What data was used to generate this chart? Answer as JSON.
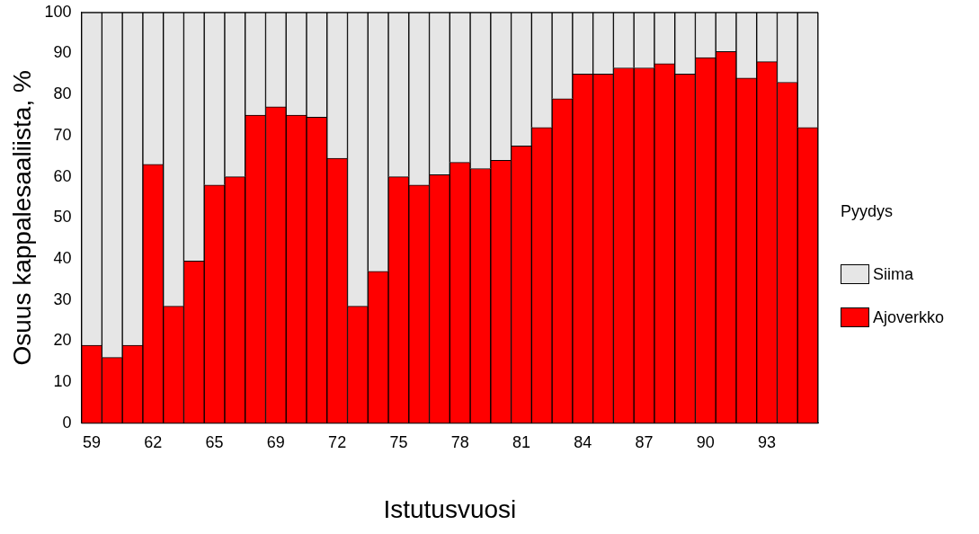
{
  "chart_data": {
    "type": "bar",
    "stacked": true,
    "xlabel": "Istutusvuosi",
    "ylabel": "Osuus kappalesaaliista, %",
    "legend_title": "Pyydys",
    "legend": "right",
    "grid": false,
    "categories": [
      "59",
      null,
      null,
      "62",
      null,
      null,
      "65",
      null,
      null,
      "69",
      null,
      null,
      "72",
      null,
      null,
      "75",
      null,
      null,
      "78",
      null,
      null,
      "81",
      null,
      null,
      "84",
      null,
      null,
      "87",
      null,
      null,
      "90",
      null,
      null,
      "93",
      null,
      null
    ],
    "ylim": [
      0,
      100
    ],
    "yticks": [
      0,
      10,
      20,
      30,
      40,
      50,
      60,
      70,
      80,
      90,
      100
    ],
    "series": [
      {
        "name": "Ajoverkko",
        "color": "#ff0000",
        "values": [
          19,
          16,
          19,
          63,
          28.5,
          39.5,
          58,
          60,
          75,
          77,
          75,
          74.5,
          64.5,
          28.5,
          37,
          60,
          58,
          60.5,
          63.5,
          62,
          64,
          67.5,
          72,
          79,
          85,
          85,
          86.5,
          86.5,
          87.5,
          85,
          89,
          90.5,
          84,
          88,
          83,
          72
        ]
      },
      {
        "name": "Siima",
        "color": "#e6e6e6",
        "values": [
          81,
          84,
          81,
          37,
          71.5,
          60.5,
          42,
          40,
          25,
          23,
          25,
          25.5,
          35.5,
          71.5,
          63,
          40,
          42,
          39.5,
          36.5,
          38,
          36,
          32.5,
          28,
          21,
          15,
          15,
          13.5,
          13.5,
          12.5,
          15,
          11,
          9.5,
          16,
          12,
          17,
          28
        ]
      }
    ]
  }
}
